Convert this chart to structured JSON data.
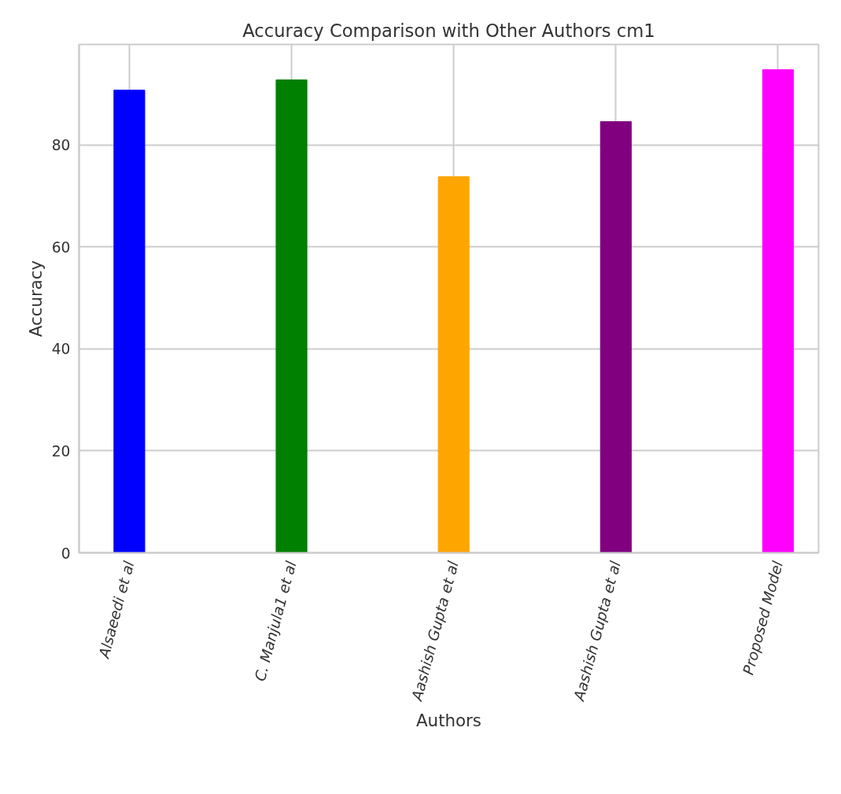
{
  "chart_data": {
    "type": "bar",
    "title": "Accuracy Comparison with Other Authors cm1",
    "xlabel": "Authors",
    "ylabel": "Accuracy",
    "categories": [
      "Alsaeedi et al",
      "C. Manjula1 et al",
      "Aashish Gupta et al",
      "Aashish Gupta et al",
      "Proposed Model"
    ],
    "values": [
      90.8,
      92.8,
      73.8,
      84.6,
      94.8
    ],
    "colors": [
      "#0000ff",
      "#008000",
      "#ffa500",
      "#800080",
      "#ff00ff"
    ],
    "ylim": [
      0,
      99.75
    ],
    "yticks": [
      0,
      20,
      40,
      60,
      80
    ],
    "grid": true
  }
}
